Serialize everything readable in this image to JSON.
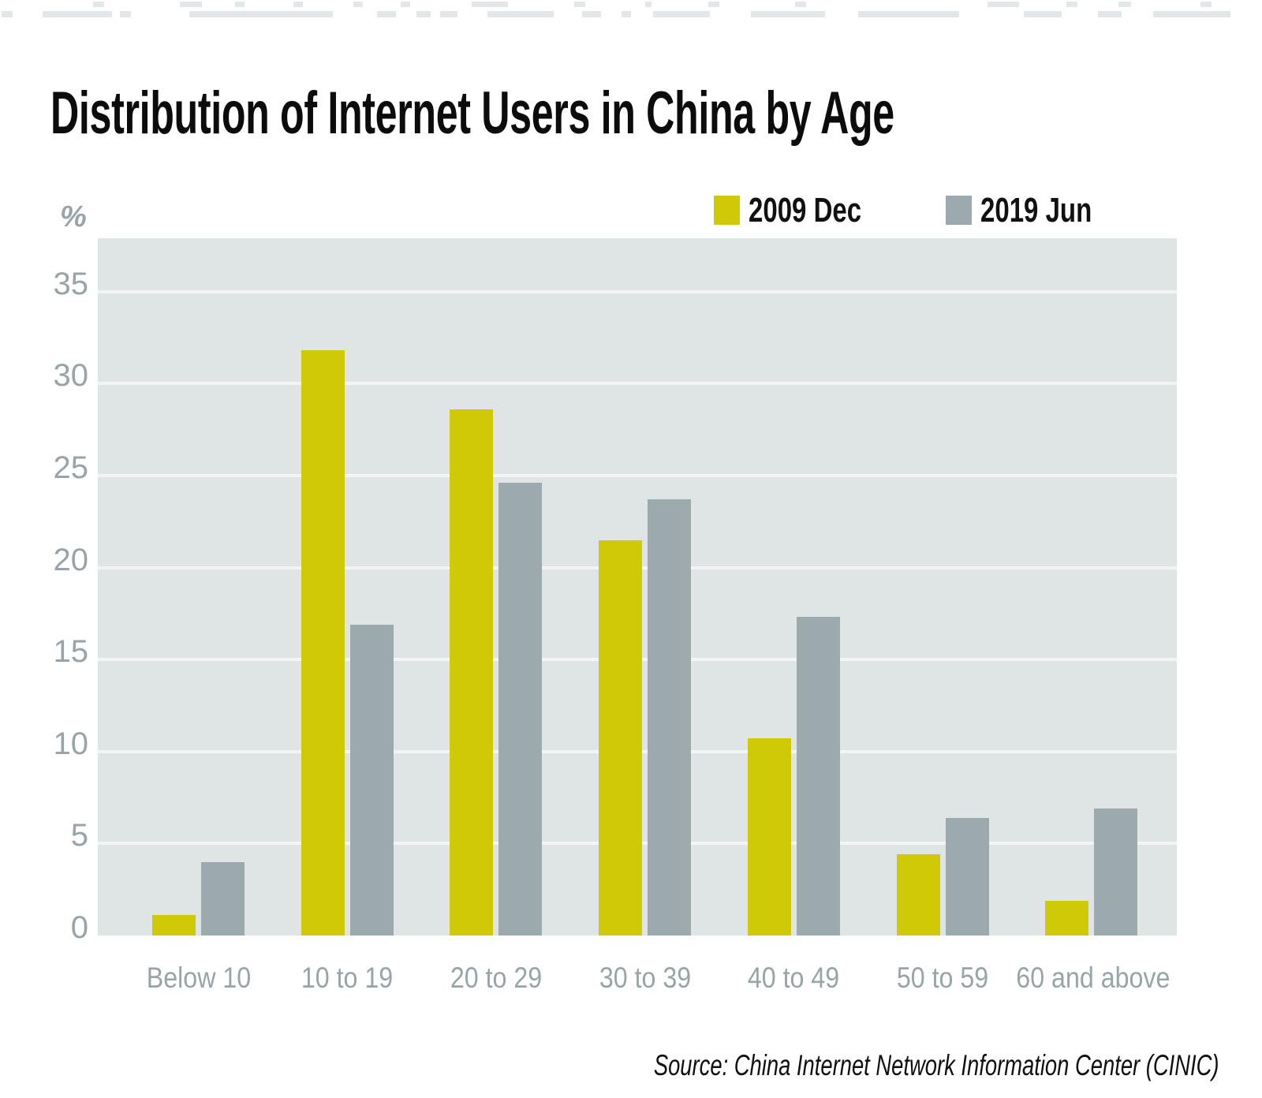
{
  "page": {
    "title": "Distribution of Internet Users in China by Age",
    "source_note": "Source: China Internet Network Information Center (CINIC)"
  },
  "chart_data": {
    "type": "bar",
    "title": "Distribution of Internet Users in China by Age",
    "unit_label": "%",
    "categories": [
      "Below 10",
      "10 to 19",
      "20 to 29",
      "30 to 39",
      "40 to 49",
      "50 to 59",
      "60 and above"
    ],
    "series": [
      {
        "name": "2009 Dec",
        "color": "#d0c908",
        "values": [
          1.1,
          31.8,
          28.6,
          21.5,
          10.7,
          4.4,
          1.9
        ]
      },
      {
        "name": "2019 Jun",
        "color": "#9caaad",
        "values": [
          4.0,
          16.9,
          24.6,
          23.7,
          17.3,
          6.4,
          6.9
        ]
      }
    ],
    "yticks": [
      0,
      5,
      10,
      15,
      20,
      25,
      30,
      35
    ],
    "ylim": [
      0,
      37.9
    ],
    "grid": true,
    "legend_position": "top-right",
    "plot_bg_color": "#dfe4e5",
    "gridline_color": "#f2f5f5",
    "axis_text_color": "#98a4a7",
    "source": "Source: China Internet Network Information Center (CINIC)"
  }
}
